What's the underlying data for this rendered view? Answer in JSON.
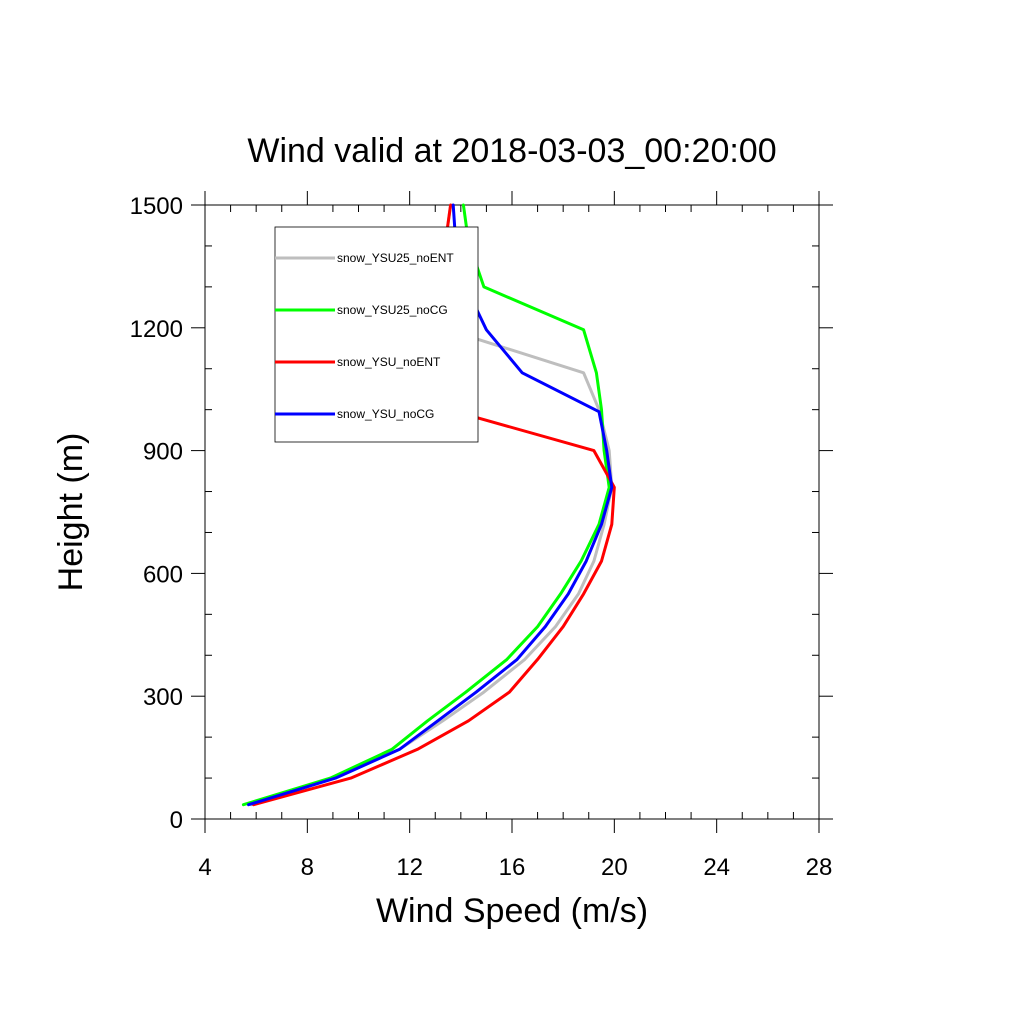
{
  "chart_data": {
    "type": "line",
    "title": "Wind valid at 2018-03-03_00:20:00",
    "xlabel": "Wind Speed (m/s)",
    "ylabel": "Height (m)",
    "xlim": [
      4,
      28
    ],
    "ylim": [
      0,
      1500
    ],
    "x_ticks": [
      4,
      8,
      12,
      16,
      20,
      24,
      28
    ],
    "y_ticks": [
      0,
      300,
      600,
      900,
      1200,
      1500
    ],
    "x_minor_step": 1,
    "y_minor_step": 100,
    "grid": false,
    "legend_position": "top-left",
    "series": [
      {
        "name": "snow_YSU25_noENT",
        "color": "#bebebe",
        "points": [
          [
            5.8,
            35
          ],
          [
            9.0,
            100
          ],
          [
            11.6,
            170
          ],
          [
            13.3,
            240
          ],
          [
            14.9,
            310
          ],
          [
            16.5,
            390
          ],
          [
            17.7,
            470
          ],
          [
            18.6,
            550
          ],
          [
            19.2,
            630
          ],
          [
            19.6,
            720
          ],
          [
            19.9,
            810
          ],
          [
            19.8,
            900
          ],
          [
            19.4,
            1000
          ],
          [
            18.8,
            1090
          ],
          [
            13.5,
            1195
          ],
          [
            13.1,
            1300
          ],
          [
            13.4,
            1410
          ],
          [
            13.6,
            1500
          ]
        ]
      },
      {
        "name": "snow_YSU25_noCG",
        "color": "#00ff00",
        "points": [
          [
            5.5,
            35
          ],
          [
            8.9,
            100
          ],
          [
            11.3,
            170
          ],
          [
            12.7,
            240
          ],
          [
            14.2,
            310
          ],
          [
            15.8,
            390
          ],
          [
            17.0,
            470
          ],
          [
            17.9,
            550
          ],
          [
            18.7,
            630
          ],
          [
            19.4,
            720
          ],
          [
            19.8,
            810
          ],
          [
            19.6,
            900
          ],
          [
            19.5,
            1000
          ],
          [
            19.3,
            1090
          ],
          [
            18.8,
            1195
          ],
          [
            14.9,
            1300
          ],
          [
            14.3,
            1410
          ],
          [
            14.1,
            1500
          ]
        ]
      },
      {
        "name": "snow_YSU_noENT",
        "color": "#ff0000",
        "points": [
          [
            5.9,
            35
          ],
          [
            9.7,
            100
          ],
          [
            12.3,
            170
          ],
          [
            14.3,
            240
          ],
          [
            15.9,
            310
          ],
          [
            17.0,
            390
          ],
          [
            18.0,
            470
          ],
          [
            18.8,
            550
          ],
          [
            19.5,
            630
          ],
          [
            19.9,
            720
          ],
          [
            20.0,
            810
          ],
          [
            19.2,
            900
          ],
          [
            14.1,
            990
          ],
          [
            13.0,
            1195
          ],
          [
            13.1,
            1300
          ],
          [
            13.4,
            1410
          ],
          [
            13.6,
            1500
          ]
        ]
      },
      {
        "name": "snow_YSU_noCG",
        "color": "#0000ff",
        "points": [
          [
            5.7,
            35
          ],
          [
            9.1,
            100
          ],
          [
            11.6,
            170
          ],
          [
            13.1,
            240
          ],
          [
            14.6,
            310
          ],
          [
            16.2,
            390
          ],
          [
            17.3,
            470
          ],
          [
            18.2,
            550
          ],
          [
            18.9,
            630
          ],
          [
            19.5,
            720
          ],
          [
            19.9,
            810
          ],
          [
            19.7,
            900
          ],
          [
            19.4,
            995
          ],
          [
            16.4,
            1090
          ],
          [
            15.0,
            1195
          ],
          [
            14.2,
            1300
          ],
          [
            13.8,
            1410
          ],
          [
            13.7,
            1500
          ]
        ]
      }
    ]
  }
}
